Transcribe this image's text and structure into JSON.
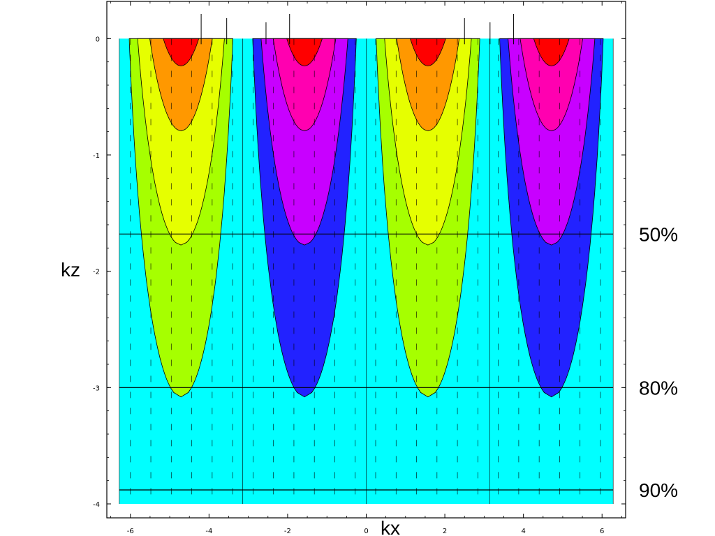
{
  "chart_data": {
    "type": "heatmap",
    "title": "",
    "xlabel": "kx",
    "ylabel": "kz",
    "xlim": [
      -6.283,
      6.283
    ],
    "ylim": [
      -4,
      0
    ],
    "frame_xlim": [
      -6.6,
      6.6
    ],
    "frame_ylim": [
      -4.12,
      0.32
    ],
    "x_ticks": [
      -6,
      -4,
      -2,
      0,
      2,
      4,
      6
    ],
    "x_tick_labels": [
      "-6",
      "-4",
      "-2",
      "0",
      "2",
      "4",
      "6"
    ],
    "y_ticks": [
      0,
      -1,
      -2,
      -3,
      -4
    ],
    "y_tick_labels": [
      "0",
      "-1",
      "-2",
      "-3",
      "-4"
    ],
    "function": "sin(kx) * exp(0.45 * kz)",
    "contour_levels": [
      -0.9,
      -0.7,
      -0.45,
      -0.25,
      -0.08,
      0.08,
      0.25,
      0.45,
      0.7,
      0.9
    ],
    "band_colors": [
      "#ff0000",
      "#ff00b0",
      "#c800ff",
      "#2222ff",
      "#1e64ff",
      "#00ffff",
      "#00ff3c",
      "#a6ff00",
      "#e6ff00",
      "#ff9800",
      "#ff0000"
    ],
    "band_sign": [
      1,
      1,
      1,
      1,
      1,
      0,
      -1,
      -1,
      -1,
      -1,
      -1
    ],
    "reference_lines": [
      {
        "kz": -1.68,
        "label": "50%"
      },
      {
        "kz": -3.0,
        "label": "80%"
      },
      {
        "kz": -3.88,
        "label": "90%"
      }
    ],
    "dashed_lines": true,
    "grid": false,
    "legend": "none"
  }
}
